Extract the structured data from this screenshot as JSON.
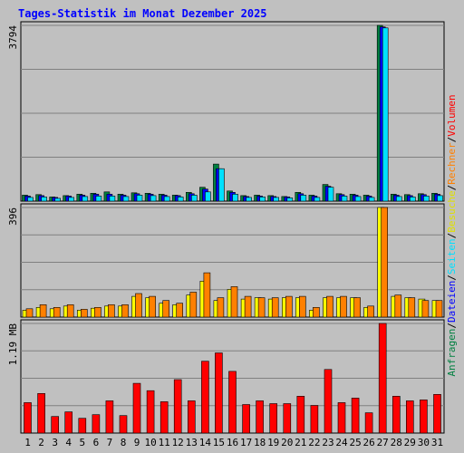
{
  "chart_data": {
    "type": "bar",
    "title": "Tages-Statistik im Monat Dezember 2025",
    "categories": [
      "1",
      "2",
      "3",
      "4",
      "5",
      "6",
      "7",
      "8",
      "9",
      "10",
      "11",
      "12",
      "13",
      "14",
      "15",
      "16",
      "17",
      "18",
      "19",
      "20",
      "21",
      "22",
      "23",
      "24",
      "25",
      "26",
      "27",
      "28",
      "29",
      "30",
      "31"
    ],
    "weekend_days": [
      "6",
      "7",
      "13",
      "14",
      "20",
      "21",
      "27",
      "28"
    ],
    "panels": [
      {
        "id": "top",
        "max_label": "3794",
        "ylim": [
          0,
          3794
        ],
        "series": [
          {
            "name": "Anfragen",
            "color": "#008040",
            "values": [
              130,
              140,
              90,
              120,
              150,
              170,
              200,
              150,
              180,
              170,
              150,
              130,
              190,
              300,
              800,
              220,
              120,
              130,
              120,
              100,
              190,
              130,
              360,
              160,
              150,
              130,
              3794,
              150,
              140,
              160,
              170
            ]
          },
          {
            "name": "Dateien",
            "color": "#0000ff",
            "values": [
              110,
              120,
              80,
              110,
              130,
              150,
              150,
              130,
              160,
              150,
              130,
              120,
              160,
              260,
              700,
              190,
              100,
              110,
              100,
              90,
              160,
              110,
              320,
              140,
              130,
              110,
              3760,
              130,
              120,
              140,
              150
            ]
          },
          {
            "name": "Seiten",
            "color": "#00e0ff",
            "values": [
              80,
              90,
              60,
              80,
              100,
              110,
              110,
              100,
              130,
              120,
              100,
              90,
              130,
              200,
              700,
              150,
              80,
              90,
              80,
              70,
              130,
              80,
              300,
              110,
              100,
              80,
              3740,
              100,
              90,
              110,
              120
            ]
          }
        ]
      },
      {
        "id": "middle",
        "max_label": "396",
        "ylim": [
          0,
          396
        ],
        "series": [
          {
            "name": "Besuche",
            "color": "#ffff00",
            "values": [
              25,
              35,
              30,
              40,
              25,
              32,
              40,
              40,
              75,
              70,
              50,
              45,
              80,
              130,
              60,
              100,
              65,
              70,
              65,
              70,
              70,
              25,
              70,
              70,
              70,
              35,
              396,
              75,
              70,
              65,
              60
            ]
          },
          {
            "name": "Rechner",
            "color": "#ff8000",
            "values": [
              30,
              45,
              35,
              45,
              28,
              35,
              45,
              45,
              85,
              75,
              60,
              50,
              90,
              160,
              70,
              110,
              75,
              70,
              70,
              75,
              75,
              35,
              75,
              75,
              70,
              40,
              396,
              80,
              70,
              60,
              60
            ]
          }
        ]
      },
      {
        "id": "bottom",
        "max_label": "1.19 MB",
        "ylim": [
          0,
          1.19
        ],
        "series": [
          {
            "name": "Volumen",
            "color": "#ff0000",
            "values": [
              0.33,
              0.43,
              0.18,
              0.23,
              0.16,
              0.2,
              0.35,
              0.19,
              0.54,
              0.46,
              0.34,
              0.58,
              0.35,
              0.78,
              0.87,
              0.67,
              0.31,
              0.35,
              0.32,
              0.32,
              0.4,
              0.3,
              0.69,
              0.33,
              0.38,
              0.22,
              1.19,
              0.4,
              0.35,
              0.36,
              0.42
            ]
          }
        ]
      }
    ],
    "legend": [
      {
        "text": "Anfragen",
        "color": "#008040"
      },
      {
        "text": "/",
        "color": "#000000"
      },
      {
        "text": "Dateien",
        "color": "#0000ff"
      },
      {
        "text": "/",
        "color": "#000000"
      },
      {
        "text": "Seiten",
        "color": "#00e0ff"
      },
      {
        "text": "/",
        "color": "#000000"
      },
      {
        "text": "Besuche",
        "color": "#e0e000"
      },
      {
        "text": "/",
        "color": "#000000"
      },
      {
        "text": "Rechner",
        "color": "#ff8000"
      },
      {
        "text": "/",
        "color": "#000000"
      },
      {
        "text": "Volumen",
        "color": "#ff0000"
      }
    ]
  }
}
